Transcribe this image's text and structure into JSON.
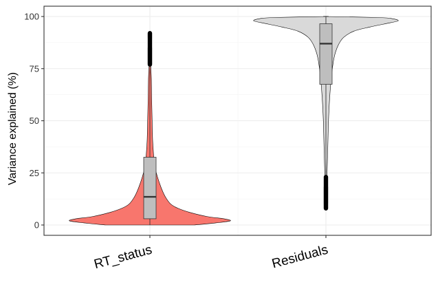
{
  "chart_data": {
    "type": "violin",
    "title": "",
    "xlabel": "",
    "ylabel": "Variance explained (%)",
    "ylim": [
      0,
      100
    ],
    "y_ticks": [
      0,
      25,
      50,
      75,
      100
    ],
    "grid": true,
    "legend": "none",
    "categories": [
      "RT_status",
      "Residuals"
    ],
    "series": [
      {
        "category": "RT_status",
        "fill": "#F8766D",
        "box": {
          "q1": 3,
          "median": 13.5,
          "q3": 32.5,
          "whisker_low": 0,
          "whisker_high": 77
        },
        "outliers_range": [
          77,
          92
        ],
        "density_profile": [
          [
            0,
            0.55
          ],
          [
            1,
            0.82
          ],
          [
            2,
            1.0
          ],
          [
            3,
            0.92
          ],
          [
            4,
            0.72
          ],
          [
            6,
            0.5
          ],
          [
            8,
            0.35
          ],
          [
            10,
            0.26
          ],
          [
            13,
            0.2
          ],
          [
            16,
            0.16
          ],
          [
            20,
            0.12
          ],
          [
            25,
            0.08
          ],
          [
            30,
            0.055
          ],
          [
            40,
            0.035
          ],
          [
            50,
            0.028
          ],
          [
            60,
            0.022
          ],
          [
            70,
            0.018
          ],
          [
            75,
            0.012
          ],
          [
            80,
            0.007
          ],
          [
            85,
            0.005
          ],
          [
            90,
            0.003
          ],
          [
            92,
            0.0
          ]
        ]
      },
      {
        "category": "Residuals",
        "fill": "#D9D9D9",
        "box": {
          "q1": 67.5,
          "median": 87,
          "q3": 96.5,
          "whisker_low": 23,
          "whisker_high": 100
        },
        "outliers_range": [
          8,
          23
        ],
        "density_profile": [
          [
            8,
            0.0
          ],
          [
            10,
            0.004
          ],
          [
            15,
            0.006
          ],
          [
            20,
            0.009
          ],
          [
            25,
            0.014
          ],
          [
            30,
            0.018
          ],
          [
            40,
            0.025
          ],
          [
            50,
            0.032
          ],
          [
            60,
            0.045
          ],
          [
            70,
            0.065
          ],
          [
            80,
            0.1
          ],
          [
            86,
            0.15
          ],
          [
            90,
            0.22
          ],
          [
            93,
            0.35
          ],
          [
            95,
            0.55
          ],
          [
            97,
            0.8
          ],
          [
            98,
            0.9
          ],
          [
            99,
            0.82
          ],
          [
            99.5,
            0.65
          ],
          [
            100,
            0.0
          ]
        ]
      }
    ]
  }
}
